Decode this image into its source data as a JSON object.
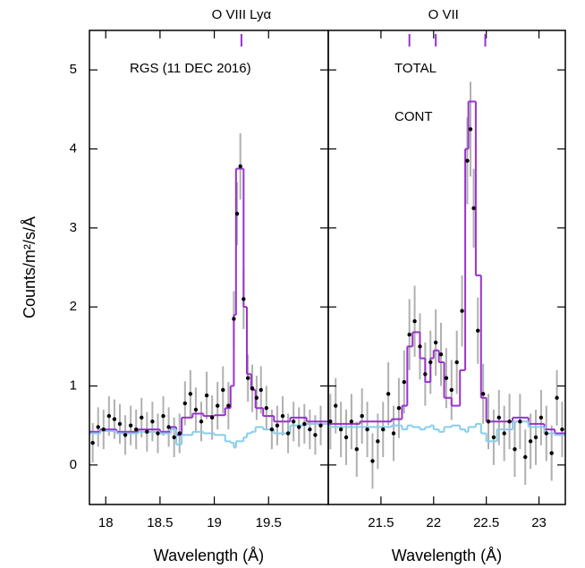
{
  "chart_data": [
    {
      "type": "spectrum",
      "xlabel": "Wavelength (Å)",
      "ylabel": "Counts/m²/s/Å",
      "annotation": "RGS (11 DEC 2016)",
      "xlim": [
        17.85,
        20.05
      ],
      "xticks": [
        18,
        18.5,
        19,
        19.5
      ],
      "ylim": [
        -0.5,
        5.5
      ],
      "yticks": [
        0,
        1,
        2,
        3,
        4,
        5
      ],
      "lines": {
        "label": "O VIII Lyα",
        "color": "#9932cc",
        "x": [
          19.25
        ]
      },
      "data": {
        "color": "#000000",
        "error_color": "#b0b0b0",
        "x": [
          17.88,
          17.93,
          17.98,
          18.03,
          18.08,
          18.13,
          18.18,
          18.23,
          18.28,
          18.33,
          18.38,
          18.43,
          18.48,
          18.53,
          18.58,
          18.63,
          18.68,
          18.73,
          18.78,
          18.83,
          18.88,
          18.93,
          18.98,
          19.03,
          19.08,
          19.13,
          19.18,
          19.21,
          19.24,
          19.27,
          19.31,
          19.35,
          19.39,
          19.43,
          19.48,
          19.53,
          19.58,
          19.63,
          19.68,
          19.73,
          19.78,
          19.83,
          19.88,
          19.93,
          19.98
        ],
        "values": [
          0.28,
          0.48,
          0.45,
          0.62,
          0.58,
          0.52,
          0.38,
          0.5,
          0.45,
          0.6,
          0.42,
          0.55,
          0.4,
          0.62,
          0.48,
          0.35,
          0.4,
          0.78,
          0.9,
          0.7,
          0.55,
          0.88,
          0.6,
          0.75,
          0.95,
          0.75,
          1.85,
          3.18,
          3.78,
          2.1,
          1.1,
          0.97,
          0.85,
          0.95,
          0.72,
          0.45,
          0.5,
          0.62,
          0.4,
          0.55,
          0.48,
          0.52,
          0.45,
          0.38,
          0.5
        ],
        "errors": [
          0.25,
          0.25,
          0.25,
          0.25,
          0.25,
          0.25,
          0.25,
          0.25,
          0.25,
          0.25,
          0.25,
          0.25,
          0.25,
          0.25,
          0.25,
          0.25,
          0.25,
          0.28,
          0.3,
          0.28,
          0.25,
          0.3,
          0.28,
          0.3,
          0.3,
          0.3,
          0.35,
          0.4,
          0.42,
          0.38,
          0.3,
          0.3,
          0.28,
          0.3,
          0.28,
          0.25,
          0.25,
          0.25,
          0.25,
          0.25,
          0.25,
          0.25,
          0.25,
          0.25,
          0.25
        ]
      },
      "series": [
        {
          "color": "#9932cc",
          "x": [
            17.85,
            17.95,
            18.1,
            18.3,
            18.5,
            18.6,
            18.65,
            18.7,
            18.8,
            18.9,
            19.0,
            19.1,
            19.15,
            19.18,
            19.2,
            19.27,
            19.3,
            19.34,
            19.38,
            19.45,
            19.55,
            19.7,
            19.85
          ],
          "values": [
            0.42,
            0.45,
            0.42,
            0.45,
            0.42,
            0.48,
            0.38,
            0.6,
            0.65,
            0.62,
            0.63,
            0.72,
            1.0,
            1.9,
            3.75,
            2.0,
            1.15,
            0.95,
            0.72,
            0.62,
            0.55,
            0.6,
            0.55
          ]
        },
        {
          "color": "#87ceeb",
          "x": [
            17.85,
            17.95,
            18.1,
            18.3,
            18.5,
            18.6,
            18.65,
            18.7,
            18.8,
            18.9,
            19.0,
            19.1,
            19.15,
            19.18,
            19.2,
            19.27,
            19.3,
            19.34,
            19.38,
            19.45,
            19.55,
            19.7,
            19.85
          ],
          "values": [
            0.4,
            0.43,
            0.4,
            0.42,
            0.4,
            0.45,
            0.26,
            0.38,
            0.42,
            0.4,
            0.38,
            0.3,
            0.28,
            0.22,
            0.3,
            0.35,
            0.4,
            0.42,
            0.48,
            0.45,
            0.4,
            0.5,
            0.52
          ]
        }
      ]
    },
    {
      "type": "spectrum",
      "xlabel": "Wavelength (Å)",
      "xlim": [
        21.0,
        23.25
      ],
      "xticks": [
        21.5,
        22,
        22.5,
        23
      ],
      "ylim": [
        -0.5,
        5.5
      ],
      "lines": {
        "label": "O VII",
        "color": "#9932cc",
        "x": [
          21.77,
          22.02,
          22.49
        ]
      },
      "data": {
        "color": "#000000",
        "error_color": "#b0b0b0",
        "x": [
          21.02,
          21.07,
          21.12,
          21.17,
          21.22,
          21.27,
          21.32,
          21.37,
          21.42,
          21.47,
          21.52,
          21.57,
          21.62,
          21.67,
          21.72,
          21.77,
          21.82,
          21.87,
          21.92,
          21.97,
          22.02,
          22.07,
          22.12,
          22.17,
          22.22,
          22.27,
          22.32,
          22.35,
          22.38,
          22.42,
          22.47,
          22.52,
          22.57,
          22.62,
          22.67,
          22.72,
          22.77,
          22.82,
          22.87,
          22.92,
          22.97,
          23.02,
          23.07,
          23.12,
          23.17,
          23.22
        ],
        "values": [
          0.55,
          0.75,
          0.45,
          0.35,
          0.55,
          0.2,
          0.62,
          0.45,
          0.05,
          0.3,
          0.45,
          0.9,
          0.4,
          0.72,
          1.05,
          1.65,
          1.82,
          1.5,
          1.15,
          1.3,
          1.55,
          1.4,
          1.1,
          0.95,
          1.3,
          1.95,
          3.85,
          4.25,
          3.25,
          1.7,
          0.9,
          0.55,
          0.35,
          0.6,
          0.4,
          0.55,
          0.2,
          0.55,
          0.1,
          0.3,
          0.35,
          0.6,
          0.4,
          0.15,
          0.85,
          0.45
        ],
        "errors": [
          0.35,
          0.35,
          0.35,
          0.35,
          0.35,
          0.35,
          0.35,
          0.35,
          0.35,
          0.35,
          0.35,
          0.4,
          0.35,
          0.38,
          0.4,
          0.45,
          0.45,
          0.42,
          0.4,
          0.4,
          0.42,
          0.4,
          0.38,
          0.38,
          0.4,
          0.45,
          0.55,
          0.6,
          0.5,
          0.42,
          0.38,
          0.35,
          0.35,
          0.35,
          0.35,
          0.35,
          0.35,
          0.35,
          0.35,
          0.35,
          0.35,
          0.35,
          0.35,
          0.35,
          0.35,
          0.35
        ]
      },
      "series": [
        {
          "name": "TOTAL",
          "color": "#9932cc",
          "x": [
            21.0,
            21.3,
            21.6,
            21.7,
            21.75,
            21.8,
            21.87,
            21.92,
            21.97,
            22.0,
            22.05,
            22.1,
            22.17,
            22.25,
            22.3,
            22.33,
            22.4,
            22.45,
            22.5,
            22.6,
            22.75,
            22.9,
            23.05,
            23.15
          ],
          "values": [
            0.52,
            0.55,
            0.58,
            0.75,
            1.5,
            1.68,
            1.35,
            1.05,
            1.35,
            1.45,
            1.3,
            0.85,
            0.75,
            1.2,
            4.0,
            4.6,
            2.4,
            0.85,
            0.55,
            0.55,
            0.6,
            0.52,
            0.45,
            0.4
          ]
        },
        {
          "name": "CONT",
          "color": "#87ceeb",
          "x": [
            21.0,
            21.3,
            21.6,
            21.7,
            21.75,
            21.8,
            21.87,
            21.92,
            21.97,
            22.0,
            22.05,
            22.1,
            22.17,
            22.25,
            22.3,
            22.33,
            22.4,
            22.45,
            22.5,
            22.6,
            22.75,
            22.9,
            23.05,
            23.15
          ],
          "values": [
            0.48,
            0.48,
            0.5,
            0.45,
            0.5,
            0.48,
            0.45,
            0.48,
            0.5,
            0.45,
            0.42,
            0.48,
            0.5,
            0.45,
            0.42,
            0.48,
            0.52,
            0.4,
            0.3,
            0.45,
            0.55,
            0.48,
            0.4,
            0.38
          ]
        }
      ]
    }
  ]
}
